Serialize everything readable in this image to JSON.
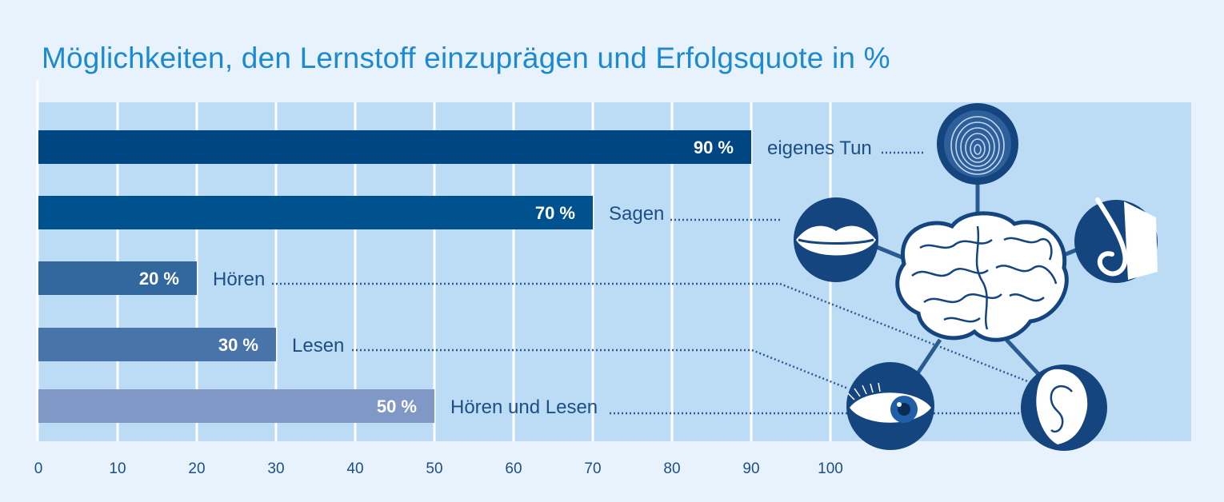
{
  "chart_data": {
    "type": "bar",
    "orientation": "horizontal",
    "title": "Möglichkeiten, den Lernstoff einzuprägen und Erfolgsquote in %",
    "xlabel": "",
    "ylabel": "",
    "xlim": [
      0,
      100
    ],
    "ticks": [
      0,
      10,
      20,
      30,
      40,
      50,
      60,
      70,
      80,
      90,
      100
    ],
    "grid": true,
    "categories": [
      "eigenes Tun",
      "Sagen",
      "Hören",
      "Lesen",
      "Hören und Lesen"
    ],
    "values": [
      90,
      70,
      20,
      30,
      50
    ],
    "value_labels": [
      "90 %",
      "70 %",
      "20 %",
      "30 %",
      "50 %"
    ],
    "bar_colors": [
      "#004682",
      "#00528f",
      "#33689f",
      "#4874aa",
      "#7f98c6"
    ],
    "connected_icons": [
      "fingerprint-icon",
      "mouth-icon",
      "ear-icon",
      "eye-icon",
      "eye-icon"
    ],
    "center_icon": "brain-icon"
  },
  "colors": {
    "background": "#e8f2fc",
    "plot_background": "#bcdbf4",
    "title": "#1b8ad0",
    "text": "#1d4f85",
    "icon_circle": "#14457f",
    "connector": "#2a5a92"
  }
}
